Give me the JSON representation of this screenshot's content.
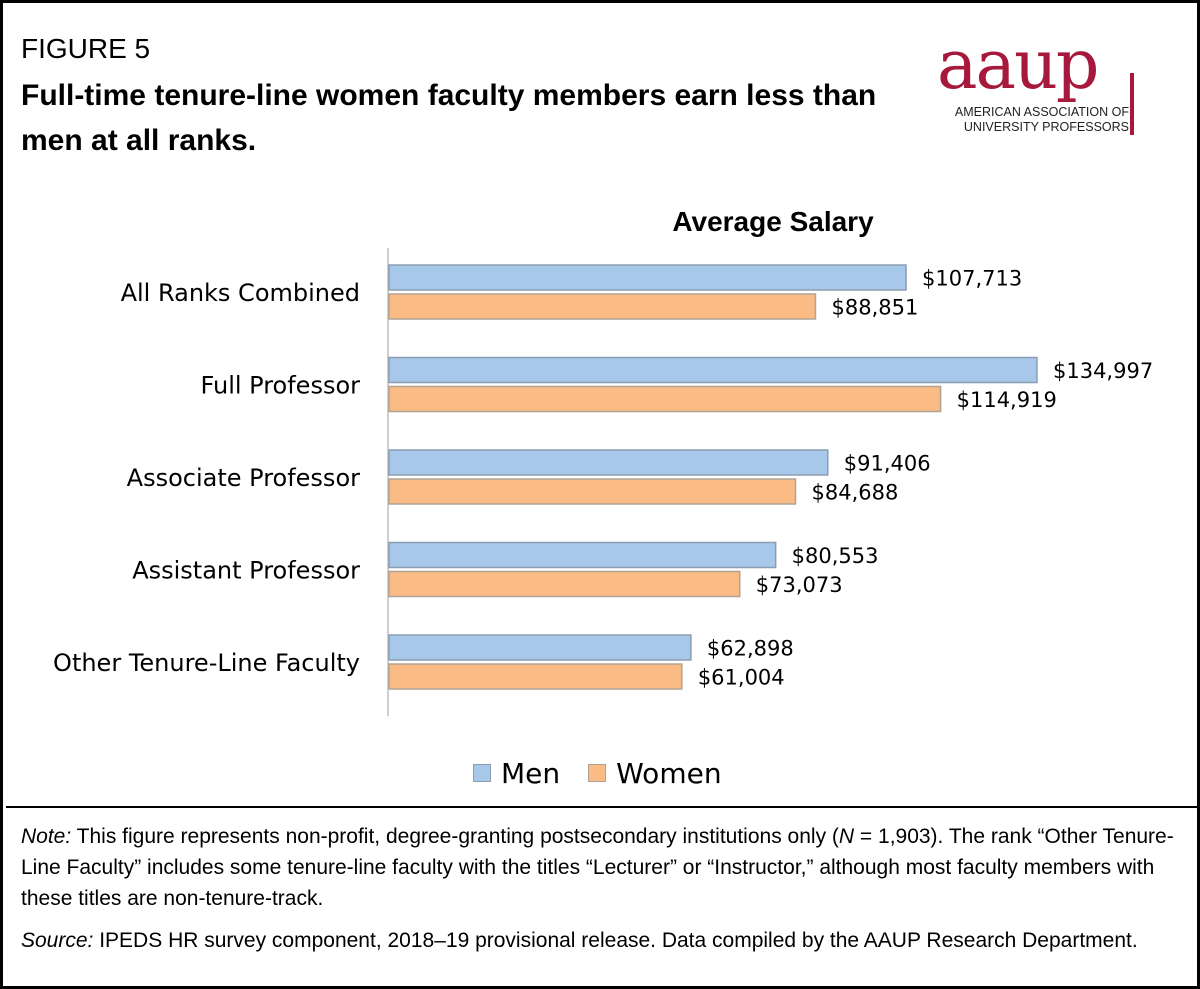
{
  "header": {
    "figure_label": "FIGURE 5",
    "title": "Full-time tenure-line women faculty members earn less than men at all ranks."
  },
  "logo": {
    "wordmark": "aaup",
    "subtitle_line1": "AMERICAN ASSOCIATION OF",
    "subtitle_line2": "UNIVERSITY PROFESSORS"
  },
  "colors": {
    "men": "#a8c8ea",
    "men_border": "#8b9db3",
    "women": "#fbbb84",
    "women_border": "#b0a395",
    "logo": "#a6193c"
  },
  "chart_data": {
    "type": "bar",
    "orientation": "horizontal",
    "title": "Average Salary",
    "categories": [
      "All Ranks Combined",
      "Full Professor",
      "Associate Professor",
      "Assistant Professor",
      "Other Tenure-Line Faculty"
    ],
    "series": [
      {
        "name": "Men",
        "values": [
          107713,
          134997,
          91406,
          80553,
          62898
        ],
        "labels": [
          "$107,713",
          "$134,997",
          "$91,406",
          "$80,553",
          "$62,898"
        ]
      },
      {
        "name": "Women",
        "values": [
          88851,
          114919,
          84688,
          73073,
          61004
        ],
        "labels": [
          "$88,851",
          "$114,919",
          "$84,688",
          "$73,073",
          "$61,004"
        ]
      }
    ],
    "xlim": [
      0,
      140000
    ],
    "grid": false,
    "legend_position": "bottom"
  },
  "footer": {
    "note_label": "Note:",
    "note_text_a": " This figure represents non-profit, degree-granting postsecondary institutions only (",
    "note_n": "N",
    "note_text_b": " = 1,903). The rank “Other Tenure-Line Faculty” includes some tenure-line faculty with the titles “Lecturer” or “Instructor,” although most faculty members with these titles are non-tenure-track.",
    "source_label": "Source:",
    "source_text": " IPEDS HR survey component, 2018–19 provisional release. Data compiled by the AAUP Research Department."
  }
}
